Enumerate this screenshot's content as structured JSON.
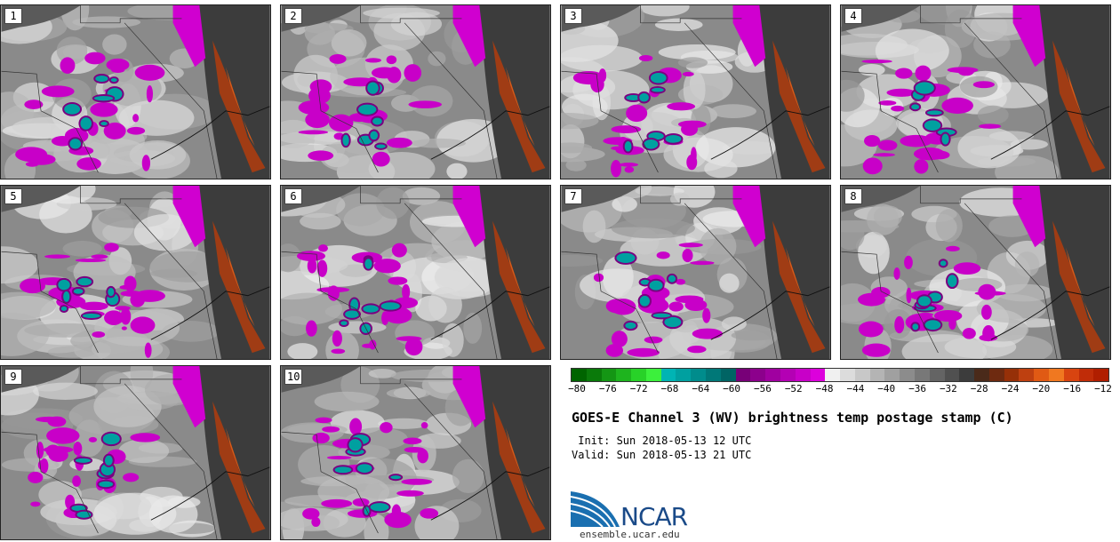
{
  "panels": [
    {
      "label": "1"
    },
    {
      "label": "2"
    },
    {
      "label": "3"
    },
    {
      "label": "4"
    },
    {
      "label": "5"
    },
    {
      "label": "6"
    },
    {
      "label": "7"
    },
    {
      "label": "8"
    },
    {
      "label": "9"
    },
    {
      "label": "10"
    }
  ],
  "colorbar": {
    "ticks": [
      "−80",
      "−76",
      "−72",
      "−68",
      "−64",
      "−60",
      "−56",
      "−52",
      "−48",
      "−44",
      "−40",
      "−36",
      "−32",
      "−28",
      "−24",
      "−20",
      "−16",
      "−12"
    ],
    "colors": [
      "#006400",
      "#0a7a0a",
      "#149614",
      "#1eb41e",
      "#28d228",
      "#3cf03c",
      "#00b4b4",
      "#00a0a0",
      "#008c8c",
      "#007878",
      "#006464",
      "#780078",
      "#8c008c",
      "#a000a0",
      "#b400b4",
      "#c800c8",
      "#dc00dc",
      "#f0f0f0",
      "#dcdcdc",
      "#c8c8c8",
      "#b4b4b4",
      "#a0a0a0",
      "#8c8c8c",
      "#787878",
      "#646464",
      "#505050",
      "#3c3c3c",
      "#4a2a1a",
      "#6e2a10",
      "#963008",
      "#be4010",
      "#e05a14",
      "#f07820",
      "#d84410",
      "#c02c08",
      "#b01e00"
    ]
  },
  "title": "GOES-E Channel 3 (WV) brightness temp postage stamp (C)",
  "init": " Init: Sun 2018-05-13 12 UTC",
  "valid": "Valid: Sun 2018-05-13 21 UTC",
  "logo": {
    "text": "NCAR",
    "site": "ensemble.ucar.edu",
    "brand_color": "#1a4a88"
  }
}
